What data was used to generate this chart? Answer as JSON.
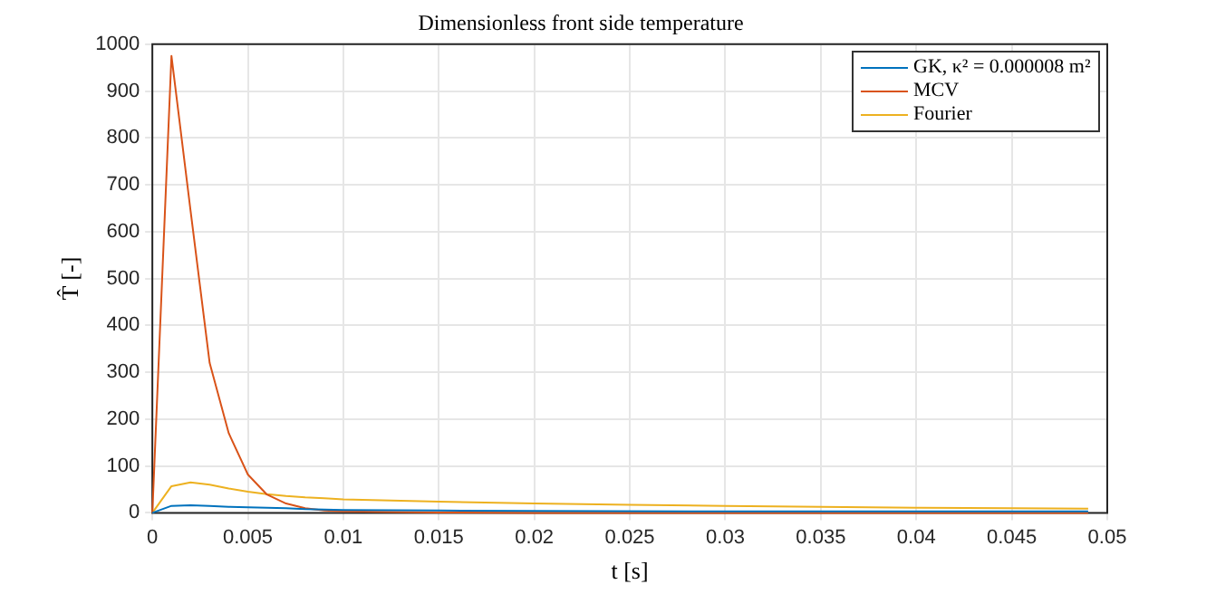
{
  "chart_data": {
    "type": "line",
    "title": "Dimensionless front side temperature",
    "xlabel": "t [s]",
    "ylabel": "T̂ [-]",
    "series": [
      {
        "name": "GK, κ² = 0.000008 m²",
        "color": "#0072bd",
        "x": [
          0,
          0.001,
          0.002,
          0.003,
          0.004,
          0.005,
          0.006,
          0.007,
          0.008,
          0.009,
          0.01,
          0.015,
          0.02,
          0.03,
          0.04,
          0.049
        ],
        "values": [
          0,
          15,
          16,
          15,
          13,
          12,
          11,
          10,
          8,
          7,
          6,
          5,
          4,
          3,
          3,
          3
        ]
      },
      {
        "name": "MCV",
        "color": "#d95319",
        "x": [
          0,
          0.001,
          0.002,
          0.003,
          0.004,
          0.005,
          0.006,
          0.007,
          0.008,
          0.009,
          0.01,
          0.015,
          0.02,
          0.03,
          0.04,
          0.049
        ],
        "values": [
          0,
          975,
          645,
          320,
          170,
          82,
          39,
          20,
          10,
          5,
          3,
          1,
          0,
          0,
          0,
          0
        ]
      },
      {
        "name": "Fourier",
        "color": "#edb120",
        "x": [
          0,
          0.001,
          0.002,
          0.003,
          0.004,
          0.005,
          0.006,
          0.007,
          0.008,
          0.009,
          0.01,
          0.015,
          0.02,
          0.025,
          0.03,
          0.035,
          0.04,
          0.045,
          0.049
        ],
        "values": [
          0,
          57,
          65,
          60,
          52,
          45,
          40,
          36,
          33,
          31,
          29,
          24,
          20,
          17,
          15,
          13,
          11,
          10,
          9
        ]
      }
    ],
    "xlim": [
      0,
      0.05
    ],
    "xticks": [
      0,
      0.005,
      0.01,
      0.015,
      0.02,
      0.025,
      0.03,
      0.035,
      0.04,
      0.045,
      0.05
    ],
    "ylim": [
      0,
      1000
    ],
    "yticks": [
      0,
      100,
      200,
      300,
      400,
      500,
      600,
      700,
      800,
      900,
      1000
    ],
    "grid": true,
    "legend": "top right",
    "marker": "none",
    "line_style": "solid"
  }
}
